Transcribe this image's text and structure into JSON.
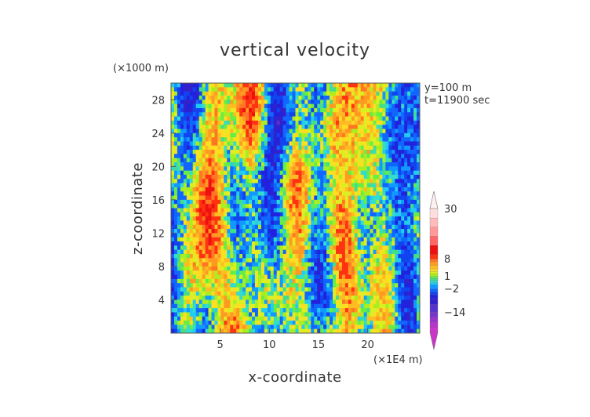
{
  "chart_data": {
    "type": "heatmap",
    "title": "vertical velocity",
    "xlabel": "x-coordinate",
    "ylabel": "z-coordinate",
    "x_multiplier_label": "(×1E4 m)",
    "y_multiplier_label": "(×1000 m)",
    "xlim": [
      0,
      25.3
    ],
    "ylim": [
      0,
      30
    ],
    "x_ticks": [
      5,
      10,
      15,
      20
    ],
    "x_tick_labels": [
      "5",
      "10",
      "15",
      "20"
    ],
    "y_ticks": [
      4,
      8,
      12,
      16,
      20,
      24,
      28
    ],
    "y_tick_labels": [
      "4",
      "8",
      "12",
      "16",
      "20",
      "24",
      "28"
    ],
    "info_lines": [
      "y=100 m",
      "t=11900 sec"
    ],
    "colorbar": {
      "labels": [
        {
          "value": 30,
          "text": "30"
        },
        {
          "value": 8,
          "text": "8"
        },
        {
          "value": 1,
          "text": "1"
        },
        {
          "value": -2,
          "text": "−2"
        },
        {
          "value": -14,
          "text": "−14"
        }
      ],
      "bands": [
        {
          "value": -30,
          "color": "#cc33cc"
        },
        {
          "value": -26,
          "color": "#b833cc"
        },
        {
          "value": -22,
          "color": "#9933cc"
        },
        {
          "value": -18,
          "color": "#7a33cc"
        },
        {
          "value": -14,
          "color": "#5533cc"
        },
        {
          "value": -10,
          "color": "#3322cc"
        },
        {
          "value": -7,
          "color": "#2222dd"
        },
        {
          "value": -5,
          "color": "#1144ee"
        },
        {
          "value": -3.5,
          "color": "#1166ff"
        },
        {
          "value": -2,
          "color": "#1199ff"
        },
        {
          "value": -1,
          "color": "#22ccee"
        },
        {
          "value": -0.5,
          "color": "#33ddcc"
        },
        {
          "value": 0,
          "color": "#44dd88"
        },
        {
          "value": 0.5,
          "color": "#66ee44"
        },
        {
          "value": 1,
          "color": "#aaee22"
        },
        {
          "value": 2,
          "color": "#ddee22"
        },
        {
          "value": 3,
          "color": "#ffdd22"
        },
        {
          "value": 4,
          "color": "#ffbb22"
        },
        {
          "value": 5.5,
          "color": "#ff9922"
        },
        {
          "value": 7,
          "color": "#ff7722"
        },
        {
          "value": 8,
          "color": "#ff3311"
        },
        {
          "value": 10,
          "color": "#ee1111"
        },
        {
          "value": 14,
          "color": "#ff6666"
        },
        {
          "value": 18,
          "color": "#ff9999"
        },
        {
          "value": 22,
          "color": "#ffbbbb"
        },
        {
          "value": 26,
          "color": "#ffdddd"
        },
        {
          "value": 30,
          "color": "#fff0f0"
        }
      ]
    }
  }
}
